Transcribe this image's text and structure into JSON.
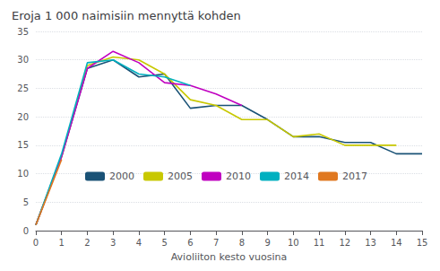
{
  "chart_data": {
    "type": "line",
    "title": "Eroja 1 000 naimisiin mennyttä kohden",
    "xlabel": "Avioliiton kesto vuosina",
    "x": [
      0,
      1,
      2,
      3,
      4,
      5,
      6,
      7,
      8,
      9,
      10,
      11,
      12,
      13,
      14,
      15
    ],
    "series": [
      {
        "name": "2000",
        "color": "#1a5276",
        "values": [
          1.0,
          13.0,
          28.5,
          30.0,
          27.0,
          27.5,
          21.5,
          22.0,
          22.0,
          19.5,
          16.5,
          16.5,
          15.5,
          15.5,
          13.5,
          13.5
        ]
      },
      {
        "name": "2005",
        "color": "#c8c800",
        "values": [
          1.0,
          13.0,
          29.0,
          30.5,
          30.0,
          27.5,
          23.0,
          22.0,
          19.5,
          19.5,
          16.5,
          17.0,
          15.0,
          15.0,
          15.0,
          null
        ]
      },
      {
        "name": "2010",
        "color": "#c000c0",
        "values": [
          1.0,
          13.0,
          28.5,
          31.5,
          29.5,
          26.0,
          25.5,
          24.0,
          22.0,
          null,
          null,
          null,
          null,
          null,
          null,
          null
        ]
      },
      {
        "name": "2014",
        "color": "#00b0c0",
        "values": [
          1.0,
          13.5,
          29.5,
          30.0,
          27.5,
          27.0,
          25.5,
          null,
          null,
          null,
          null,
          null,
          null,
          null,
          null,
          null
        ]
      },
      {
        "name": "2017",
        "color": "#e07820",
        "values": [
          1.0,
          12.5,
          null,
          null,
          null,
          null,
          null,
          null,
          null,
          null,
          null,
          null,
          null,
          null,
          null,
          null
        ]
      }
    ],
    "xlim": [
      0,
      15
    ],
    "xticks": [
      0,
      1,
      2,
      3,
      4,
      5,
      6,
      7,
      8,
      9,
      10,
      11,
      12,
      13,
      14,
      15
    ],
    "ylim": [
      0,
      35
    ],
    "yticks": [
      0,
      5,
      10,
      15,
      20,
      25,
      30,
      35
    ],
    "grid": true,
    "legend": "lower left"
  }
}
